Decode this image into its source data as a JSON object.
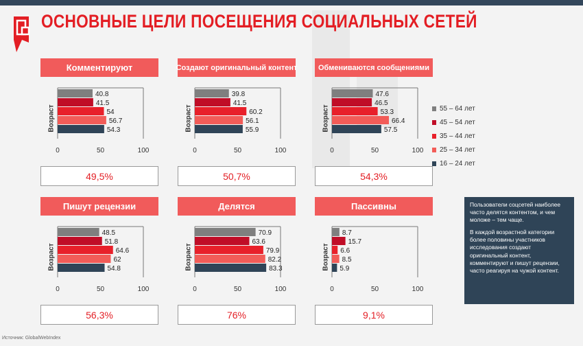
{
  "title": "ОСНОВНЫЕ ЦЕЛИ ПОСЕЩЕНИЯ СОЦИАЛЬНЫХ СЕТЕЙ",
  "ylabel": "Возраст",
  "legend": [
    {
      "label": "55 – 64 лет",
      "color": "#7f7f7f"
    },
    {
      "label": "45 – 54 лет",
      "color": "#c00d27"
    },
    {
      "label": "35 – 44 лет",
      "color": "#e8202a"
    },
    {
      "label": "25 – 34 лет",
      "color": "#f25c58"
    },
    {
      "label": "16 – 24 лет",
      "color": "#2f4457"
    }
  ],
  "note": {
    "p1": "Пользователи соцсетей наиболее часто делятся контентом, и чем моложе – тем чаще.",
    "p2": "В каждой возрастной категории более половины  участников исследования создают оригинальный контент, комментируют и пишут рецензии, часто реагируя на чужой контент."
  },
  "source": "Источник:  GlobalWebIndex",
  "chart_data": [
    {
      "type": "bar",
      "title": "Комментируют",
      "series_names": [
        "55 – 64 лет",
        "45 – 54 лет",
        "35 – 44 лет",
        "25 – 34 лет",
        "16 – 24 лет"
      ],
      "values": [
        40.8,
        41.5,
        54,
        56.7,
        54.3
      ],
      "value_labels": [
        "40.8",
        "41.5",
        "54",
        "56.7",
        "54.3"
      ],
      "ylabel": "Возраст",
      "xlim": [
        0,
        100
      ],
      "ticks": [
        "0",
        "50",
        "100"
      ],
      "result": "49,5%"
    },
    {
      "type": "bar",
      "title": "Создают оригинальный контент",
      "series_names": [
        "55 – 64 лет",
        "45 – 54 лет",
        "35 – 44 лет",
        "25 – 34 лет",
        "16 – 24 лет"
      ],
      "values": [
        39.8,
        41.5,
        60.2,
        56.1,
        55.9
      ],
      "value_labels": [
        "39.8",
        "41.5",
        "60.2",
        "56.1",
        "55.9"
      ],
      "ylabel": "Возраст",
      "xlim": [
        0,
        100
      ],
      "ticks": [
        "0",
        "50",
        "100"
      ],
      "result": "50,7%"
    },
    {
      "type": "bar",
      "title": "Обмениваются сообщениями",
      "series_names": [
        "55 – 64 лет",
        "45 – 54 лет",
        "35 – 44 лет",
        "25 – 34 лет",
        "16 – 24 лет"
      ],
      "values": [
        47.6,
        46.5,
        53.3,
        66.4,
        57.5
      ],
      "value_labels": [
        "47.6",
        "46.5",
        "53.3",
        "66.4",
        "57.5"
      ],
      "ylabel": "Возраст",
      "xlim": [
        0,
        100
      ],
      "ticks": [
        "0",
        "50",
        "100"
      ],
      "result": "54,3%"
    },
    {
      "type": "bar",
      "title": "Пишут рецензии",
      "series_names": [
        "55 – 64 лет",
        "45 – 54 лет",
        "35 – 44 лет",
        "25 – 34 лет",
        "16 – 24 лет"
      ],
      "values": [
        48.5,
        51.8,
        64.6,
        62,
        54.8
      ],
      "value_labels": [
        "48.5",
        "51.8",
        "64.6",
        "62",
        "54.8"
      ],
      "ylabel": "Возраст",
      "xlim": [
        0,
        100
      ],
      "ticks": [
        "0",
        "50",
        "100"
      ],
      "result": "56,3%"
    },
    {
      "type": "bar",
      "title": "Делятся",
      "series_names": [
        "55 – 64 лет",
        "45 – 54 лет",
        "35 – 44 лет",
        "25 – 34 лет",
        "16 – 24 лет"
      ],
      "values": [
        70.9,
        63.6,
        79.9,
        82.2,
        83.3
      ],
      "value_labels": [
        "70.9",
        "63.6",
        "79.9",
        "82.2",
        "83.3"
      ],
      "ylabel": "Возраст",
      "xlim": [
        0,
        100
      ],
      "ticks": [
        "0",
        "50",
        "100"
      ],
      "result": "76%"
    },
    {
      "type": "bar",
      "title": "Пассивны",
      "series_names": [
        "55 – 64 лет",
        "45 – 54 лет",
        "35 – 44 лет",
        "25 – 34 лет",
        "16 – 24 лет"
      ],
      "values": [
        8.7,
        15.7,
        6.6,
        8.5,
        5.9
      ],
      "value_labels": [
        "8.7",
        "15.7",
        "6.6",
        "8.5",
        "5.9"
      ],
      "ylabel": "Возраст",
      "xlim": [
        0,
        100
      ],
      "ticks": [
        "0",
        "50",
        "100"
      ],
      "result": "9,1%"
    }
  ]
}
